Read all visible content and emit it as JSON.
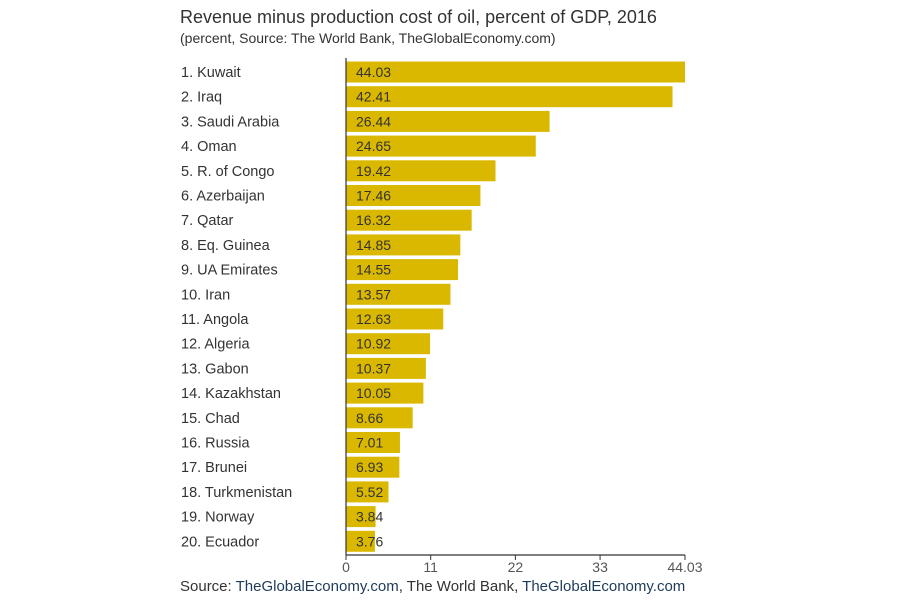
{
  "chart_data": {
    "type": "bar",
    "orientation": "horizontal",
    "title": "Revenue minus production cost of oil, percent of GDP, 2016",
    "subtitle": "(percent, Source: The World Bank, TheGlobalEconomy.com)",
    "categories": [
      "1. Kuwait",
      "2. Iraq",
      "3. Saudi Arabia",
      "4. Oman",
      "5. R. of Congo",
      "6. Azerbaijan",
      "7. Qatar",
      "8. Eq. Guinea",
      "9. UA Emirates",
      "10. Iran",
      "11. Angola",
      "12. Algeria",
      "13. Gabon",
      "14. Kazakhstan",
      "15. Chad",
      "16. Russia",
      "17. Brunei",
      "18. Turkmenistan",
      "19. Norway",
      "20. Ecuador"
    ],
    "values": [
      44.03,
      42.41,
      26.44,
      24.65,
      19.42,
      17.46,
      16.32,
      14.85,
      14.55,
      13.57,
      12.63,
      10.92,
      10.37,
      10.05,
      8.66,
      7.01,
      6.93,
      5.52,
      3.84,
      3.76
    ],
    "value_labels": [
      "44.03",
      "42.41",
      "26.44",
      "24.65",
      "19.42",
      "17.46",
      "16.32",
      "14.85",
      "14.55",
      "13.57",
      "12.63",
      "10.92",
      "10.37",
      "10.05",
      "8.66",
      "7.01",
      "6.93",
      "5.52",
      "3.84",
      "3.76"
    ],
    "xlim": [
      0,
      44.03
    ],
    "xticks": [
      0,
      11,
      22,
      33,
      44.03
    ],
    "xtick_labels": [
      "0",
      "11",
      "22",
      "33",
      "44.03"
    ],
    "xlabel": "",
    "ylabel": "",
    "grid": false,
    "legend": "none",
    "bar_color": "#dbb800"
  },
  "footer": {
    "prefix": "Source: ",
    "source_1": "TheGlobalEconomy.com",
    "sep_1": ", ",
    "source_2": "The World Bank",
    "sep_2": ", ",
    "source_3": "TheGlobalEconomy.com"
  },
  "colors": {
    "text": "#333333",
    "axis": "#333333",
    "tick_text": "#555555",
    "source_link": "#1f3b5a"
  }
}
